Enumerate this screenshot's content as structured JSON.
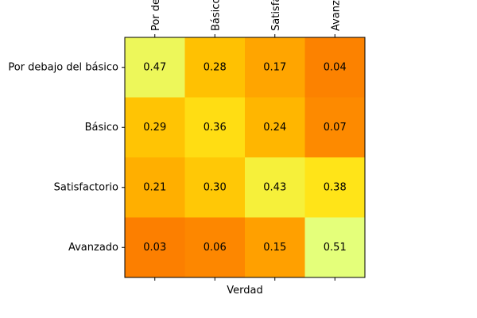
{
  "chart_data": {
    "type": "heatmap",
    "xlabel": "Verdad",
    "ylabel": "",
    "x_tick_labels": [
      "Por debajo del básico",
      "Básico",
      "Satisfactorio",
      "Avanzado"
    ],
    "y_tick_labels": [
      "Por debajo del básico",
      "Básico",
      "Satisfactorio",
      "Avanzado"
    ],
    "values": [
      [
        0.47,
        0.28,
        0.17,
        0.04
      ],
      [
        0.29,
        0.36,
        0.24,
        0.07
      ],
      [
        0.21,
        0.3,
        0.43,
        0.38
      ],
      [
        0.03,
        0.06,
        0.15,
        0.51
      ]
    ],
    "value_labels": [
      [
        "0.47",
        "0.28",
        "0.17",
        "0.04"
      ],
      [
        "0.29",
        "0.36",
        "0.24",
        "0.07"
      ],
      [
        "0.21",
        "0.30",
        "0.43",
        "0.38"
      ],
      [
        "0.03",
        "0.06",
        "0.15",
        "0.51"
      ]
    ],
    "colormap": "Wistia",
    "colormap_stops": [
      "#e4ff7a",
      "#ffe81a",
      "#ffbd00",
      "#ffa000",
      "#fc7f00"
    ],
    "color_range": [
      0.03,
      0.51
    ],
    "x_ticks_position": "top and bottom, labels on top",
    "grid": false
  }
}
